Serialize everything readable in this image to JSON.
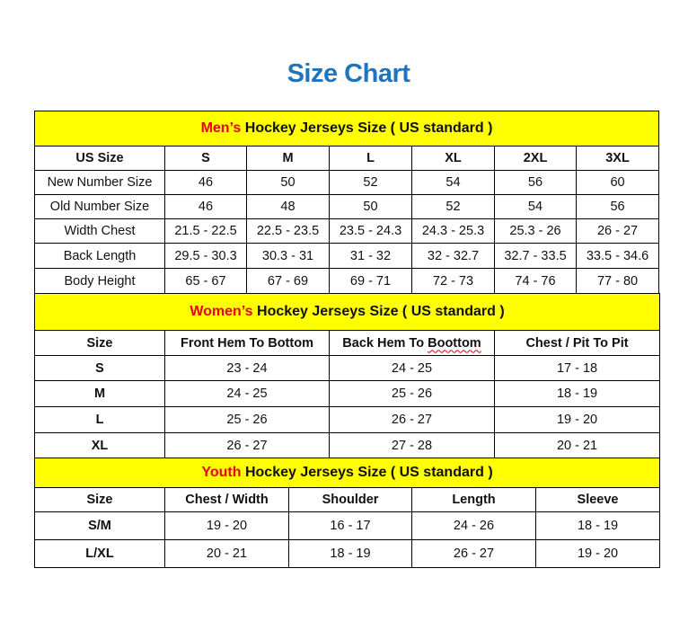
{
  "title": "Size Chart",
  "colors": {
    "title": "#1f74bc",
    "section_bg": "#ffff00",
    "highlight": "#e8001c"
  },
  "men": {
    "section_highlight": "Men’s",
    "section_rest": " Hockey Jerseys Size ( US standard )",
    "headers": [
      "US Size",
      "S",
      "M",
      "L",
      "XL",
      "2XL",
      "3XL"
    ],
    "rows": [
      [
        "New Number Size",
        "46",
        "50",
        "52",
        "54",
        "56",
        "60"
      ],
      [
        "Old Number Size",
        "46",
        "48",
        "50",
        "52",
        "54",
        "56"
      ],
      [
        "Width Chest",
        "21.5 - 22.5",
        "22.5 - 23.5",
        "23.5 - 24.3",
        "24.3 - 25.3",
        "25.3 - 26",
        "26 - 27"
      ],
      [
        "Back Length",
        "29.5 - 30.3",
        "30.3 - 31",
        "31 - 32",
        "32 - 32.7",
        "32.7 - 33.5",
        "33.5 - 34.6"
      ],
      [
        "Body Height",
        "65 - 67",
        "67 - 69",
        "69 - 71",
        "72 - 73",
        "74 - 76",
        "77 - 80"
      ]
    ]
  },
  "women": {
    "section_highlight": "Women’s",
    "section_rest": " Hockey Jerseys Size ( US standard )",
    "headers": [
      "Size",
      "Front Hem To Bottom",
      "Back Hem To Boottom",
      "Chest / Pit To Pit"
    ],
    "rows": [
      [
        "S",
        "23 - 24",
        "24 - 25",
        "17 - 18"
      ],
      [
        "M",
        "24 - 25",
        "25 - 26",
        "18 - 19"
      ],
      [
        "L",
        "25 - 26",
        "26 - 27",
        "19 - 20"
      ],
      [
        "XL",
        "26 - 27",
        "27 - 28",
        "20 - 21"
      ]
    ]
  },
  "youth": {
    "section_highlight": "Youth",
    "section_rest": " Hockey Jerseys Size ( US standard )",
    "headers": [
      "Size",
      "Chest / Width",
      "Shoulder",
      "Length",
      "Sleeve"
    ],
    "rows": [
      [
        "S/M",
        "19 - 20",
        "16 - 17",
        "24 - 26",
        "18 - 19"
      ],
      [
        "L/XL",
        "20 - 21",
        "18 - 19",
        "26 - 27",
        "19 - 20"
      ]
    ]
  }
}
